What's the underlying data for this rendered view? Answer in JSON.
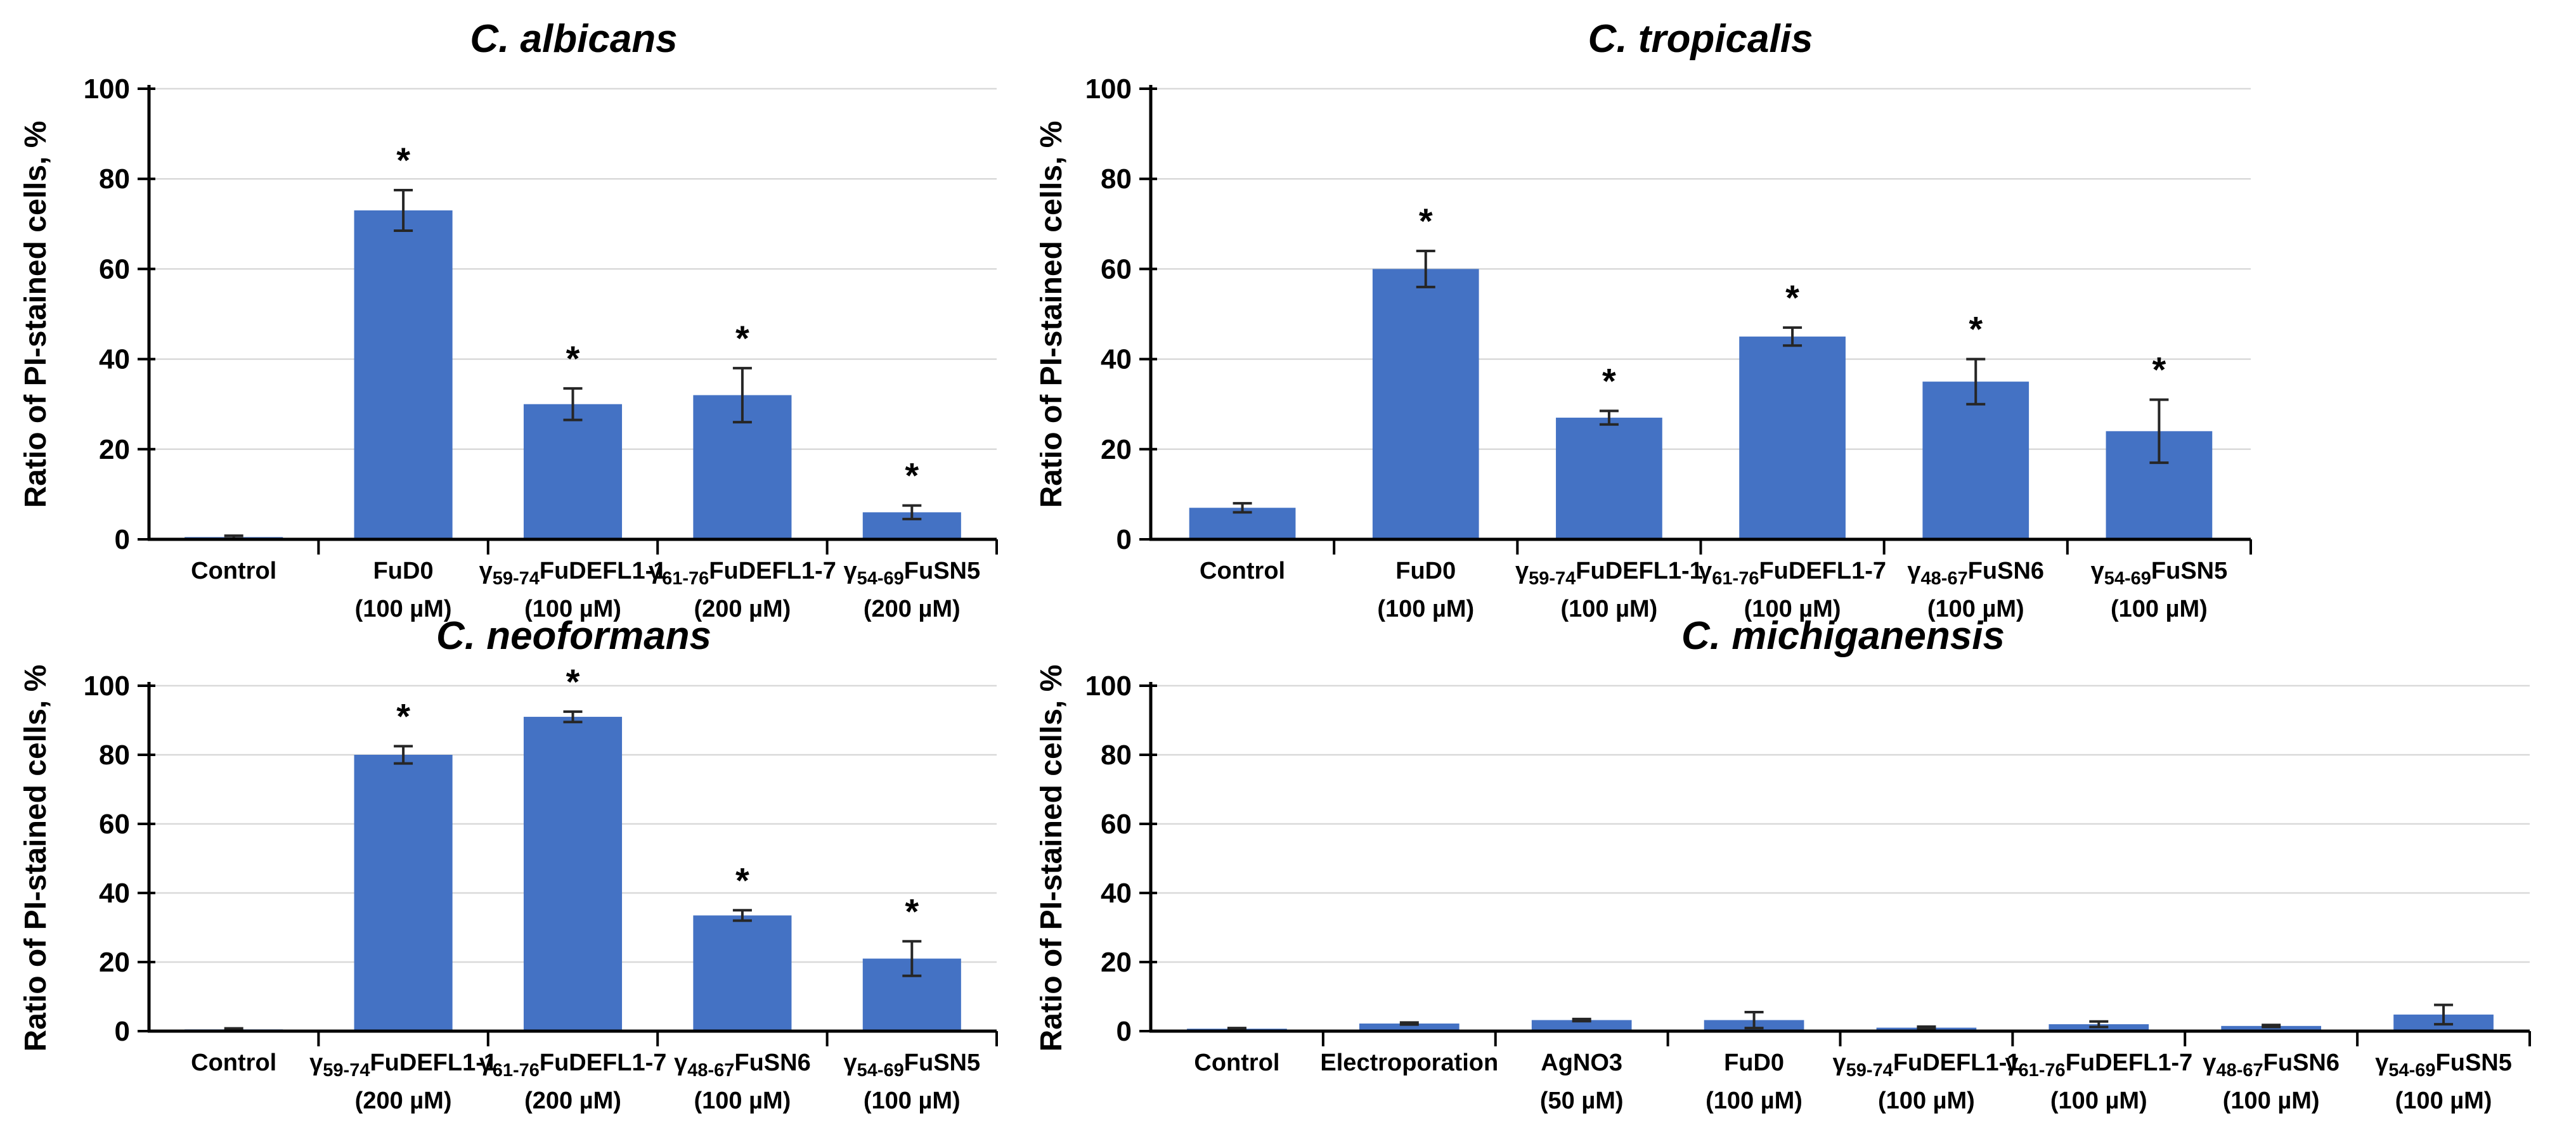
{
  "figure": {
    "background": "#FFFFFF",
    "bar_color": "#4472C4",
    "grid_color": "#D9D9D9",
    "axis_color": "#000000",
    "error_color": "#262626",
    "significance_marker": "*"
  },
  "chart_data": [
    {
      "id": "c-albicans",
      "type": "bar",
      "title": "C. albicans",
      "ylabel": "Ratio of PI-stained cells, %",
      "ylim": [
        0,
        100
      ],
      "yticks": [
        0,
        20,
        40,
        60,
        80,
        100
      ],
      "grid": true,
      "legend": false,
      "categories": [
        {
          "segments": [
            {
              "t": "Control",
              "sub": false
            }
          ],
          "dose": ""
        },
        {
          "segments": [
            {
              "t": "FuD0",
              "sub": false
            }
          ],
          "dose": "(100 µM)"
        },
        {
          "segments": [
            {
              "t": "γ",
              "sub": false
            },
            {
              "t": "59-74",
              "sub": true
            },
            {
              "t": "FuDEFL1-1",
              "sub": false
            }
          ],
          "dose": "(100 µM)"
        },
        {
          "segments": [
            {
              "t": "γ",
              "sub": false
            },
            {
              "t": "61-76",
              "sub": true
            },
            {
              "t": "FuDEFL1-7",
              "sub": false
            }
          ],
          "dose": "(200 µM)"
        },
        {
          "segments": [
            {
              "t": "γ",
              "sub": false
            },
            {
              "t": "54-69",
              "sub": true
            },
            {
              "t": "FuSN5",
              "sub": false
            }
          ],
          "dose": "(200 µM)"
        }
      ],
      "values": [
        0.5,
        73,
        30,
        32,
        6
      ],
      "errors": [
        0.3,
        4.5,
        3.5,
        6,
        1.5
      ],
      "significant": [
        false,
        true,
        true,
        true,
        true
      ]
    },
    {
      "id": "c-tropicalis",
      "type": "bar",
      "title": "C. tropicalis",
      "ylabel": "Ratio of PI-stained cells, %",
      "ylim": [
        0,
        100
      ],
      "yticks": [
        0,
        20,
        40,
        60,
        80,
        100
      ],
      "grid": true,
      "legend": false,
      "categories": [
        {
          "segments": [
            {
              "t": "Control",
              "sub": false
            }
          ],
          "dose": ""
        },
        {
          "segments": [
            {
              "t": "FuD0",
              "sub": false
            }
          ],
          "dose": "(100 µM)"
        },
        {
          "segments": [
            {
              "t": "γ",
              "sub": false
            },
            {
              "t": "59-74",
              "sub": true
            },
            {
              "t": "FuDEFL1-1",
              "sub": false
            }
          ],
          "dose": "(100 µM)"
        },
        {
          "segments": [
            {
              "t": "γ",
              "sub": false
            },
            {
              "t": "61-76",
              "sub": true
            },
            {
              "t": "FuDEFL1-7",
              "sub": false
            }
          ],
          "dose": "(100 µM)"
        },
        {
          "segments": [
            {
              "t": "γ",
              "sub": false
            },
            {
              "t": "48-67",
              "sub": true
            },
            {
              "t": "FuSN6",
              "sub": false
            }
          ],
          "dose": "(100 µM)"
        },
        {
          "segments": [
            {
              "t": "γ",
              "sub": false
            },
            {
              "t": "54-69",
              "sub": true
            },
            {
              "t": "FuSN5",
              "sub": false
            }
          ],
          "dose": "(100 µM)"
        }
      ],
      "values": [
        7,
        60,
        27,
        45,
        35,
        24
      ],
      "errors": [
        1,
        4,
        1.5,
        2,
        5,
        7
      ],
      "significant": [
        false,
        true,
        true,
        true,
        true,
        true
      ]
    },
    {
      "id": "c-neoformans",
      "type": "bar",
      "title": "C. neoformans",
      "ylabel": "Ratio of PI-stained cells, %",
      "ylim": [
        0,
        100
      ],
      "yticks": [
        0,
        20,
        40,
        60,
        80,
        100
      ],
      "grid": true,
      "legend": false,
      "categories": [
        {
          "segments": [
            {
              "t": "Control",
              "sub": false
            }
          ],
          "dose": ""
        },
        {
          "segments": [
            {
              "t": "γ",
              "sub": false
            },
            {
              "t": "59-74",
              "sub": true
            },
            {
              "t": "FuDEFL1-1",
              "sub": false
            }
          ],
          "dose": "(200 µM)"
        },
        {
          "segments": [
            {
              "t": "γ",
              "sub": false
            },
            {
              "t": "61-76",
              "sub": true
            },
            {
              "t": "FuDEFL1-7",
              "sub": false
            }
          ],
          "dose": "(200 µM)"
        },
        {
          "segments": [
            {
              "t": "γ",
              "sub": false
            },
            {
              "t": "48-67",
              "sub": true
            },
            {
              "t": "FuSN6",
              "sub": false
            }
          ],
          "dose": "(100 µM)"
        },
        {
          "segments": [
            {
              "t": "γ",
              "sub": false
            },
            {
              "t": "54-69",
              "sub": true
            },
            {
              "t": "FuSN5",
              "sub": false
            }
          ],
          "dose": "(100 µM)"
        }
      ],
      "values": [
        0.5,
        80,
        91,
        33.5,
        21
      ],
      "errors": [
        0.3,
        2.5,
        1.5,
        1.5,
        5
      ],
      "significant": [
        false,
        true,
        true,
        true,
        true
      ]
    },
    {
      "id": "c-michiganensis",
      "type": "bar",
      "title": "C. michiganensis",
      "ylabel": "Ratio of PI-stained cells, %",
      "ylim": [
        0,
        100
      ],
      "yticks": [
        0,
        20,
        40,
        60,
        80,
        100
      ],
      "grid": true,
      "legend": false,
      "categories": [
        {
          "segments": [
            {
              "t": "Control",
              "sub": false
            }
          ],
          "dose": ""
        },
        {
          "segments": [
            {
              "t": "Electroporation",
              "sub": false
            }
          ],
          "dose": ""
        },
        {
          "segments": [
            {
              "t": "AgNO3",
              "sub": false
            }
          ],
          "dose": "(50 µM)"
        },
        {
          "segments": [
            {
              "t": "FuD0",
              "sub": false
            }
          ],
          "dose": "(100 µM)"
        },
        {
          "segments": [
            {
              "t": "γ",
              "sub": false
            },
            {
              "t": "59-74",
              "sub": true
            },
            {
              "t": "FuDEFL1-1",
              "sub": false
            }
          ],
          "dose": "(100 µM)"
        },
        {
          "segments": [
            {
              "t": "γ",
              "sub": false
            },
            {
              "t": "61-76",
              "sub": true
            },
            {
              "t": "FuDEFL1-7",
              "sub": false
            }
          ],
          "dose": "(100 µM)"
        },
        {
          "segments": [
            {
              "t": "γ",
              "sub": false
            },
            {
              "t": "48-67",
              "sub": true
            },
            {
              "t": "FuSN6",
              "sub": false
            }
          ],
          "dose": "(100 µM)"
        },
        {
          "segments": [
            {
              "t": "γ",
              "sub": false
            },
            {
              "t": "54-69",
              "sub": true
            },
            {
              "t": "FuSN5",
              "sub": false
            }
          ],
          "dose": "(100 µM)"
        }
      ],
      "values": [
        0.7,
        2.2,
        3.2,
        3.2,
        1,
        2,
        1.5,
        4.8
      ],
      "errors": [
        0.2,
        0.3,
        0.3,
        2.3,
        0.3,
        0.8,
        0.3,
        2.8
      ],
      "significant": [
        false,
        false,
        false,
        false,
        false,
        false,
        false,
        false
      ]
    }
  ]
}
